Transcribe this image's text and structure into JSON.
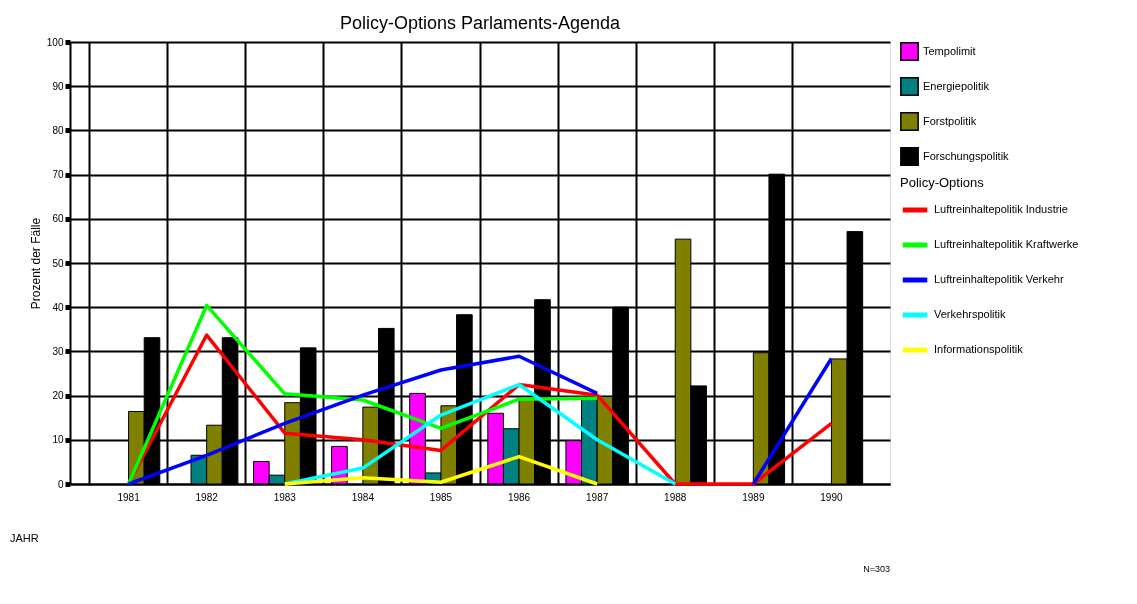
{
  "chart_data": {
    "type": "bar",
    "title": "Policy-Options Parlaments-Agenda",
    "xlabel": "JAHR",
    "ylabel": "Prozent der Fälle",
    "legend_title": "Policy-Options",
    "categories": [
      "1981",
      "1982",
      "1983",
      "1984",
      "1985",
      "1986",
      "1987",
      "1988",
      "1989",
      "1990"
    ],
    "series": [
      {
        "name": "Tempolimit",
        "color": "#ff00ff",
        "values": [
          null,
          null,
          5.1,
          8.5,
          20.5,
          16.0,
          9.8,
          null,
          null,
          null
        ]
      },
      {
        "name": "Energiepolitik",
        "color": "#008080",
        "values": [
          null,
          6.5,
          2.0,
          null,
          2.5,
          12.5,
          19.8,
          null,
          null,
          null
        ]
      },
      {
        "name": "Forstpolitik",
        "color": "#808000",
        "values": [
          16.4,
          13.3,
          18.4,
          17.4,
          17.7,
          19.8,
          19.8,
          55.4,
          29.7,
          28.3
        ]
      },
      {
        "name": "Forschungspolitik",
        "color": "#000000",
        "values": [
          33.1,
          33.1,
          30.8,
          35.2,
          38.3,
          41.7,
          40.0,
          22.2,
          70.1,
          57.1
        ]
      },
      {
        "name": "Luftreinhaltepolitik Industrie",
        "type": "line",
        "color": "#ff0000",
        "values": [
          0,
          33.7,
          11.5,
          10.0,
          7.6,
          22.5,
          20.1,
          0,
          0,
          13.7
        ]
      },
      {
        "name": "Luftreinhaltepolitik Kraftwerke",
        "type": "line",
        "color": "#00ff00",
        "values": [
          0,
          40.4,
          20.4,
          19.0,
          12.6,
          19.2,
          19.4,
          null,
          null,
          null
        ]
      },
      {
        "name": "Luftreinhaltepolitik Verkehr",
        "type": "line",
        "color": "#0000ff",
        "values": [
          0,
          6.5,
          13.7,
          20.1,
          25.8,
          28.9,
          20.5,
          null,
          0,
          28.4
        ]
      },
      {
        "name": "Verkehrspolitik",
        "type": "line",
        "color": "#00ffff",
        "values": [
          null,
          null,
          0,
          3.6,
          15.6,
          22.5,
          10.0,
          0,
          null,
          null
        ]
      },
      {
        "name": "Informationspolitik",
        "type": "line",
        "color": "#ffff00",
        "values": [
          null,
          null,
          0,
          1.4,
          0.4,
          6.2,
          0,
          null,
          null,
          null
        ]
      }
    ],
    "ylim": [
      0,
      100
    ],
    "yticks": [
      0,
      10,
      20,
      30,
      40,
      50,
      60,
      70,
      80,
      90,
      100
    ],
    "grid": true,
    "legend": "right",
    "line_style": "solid",
    "marker": "none",
    "annotations": [
      "N=303"
    ]
  }
}
